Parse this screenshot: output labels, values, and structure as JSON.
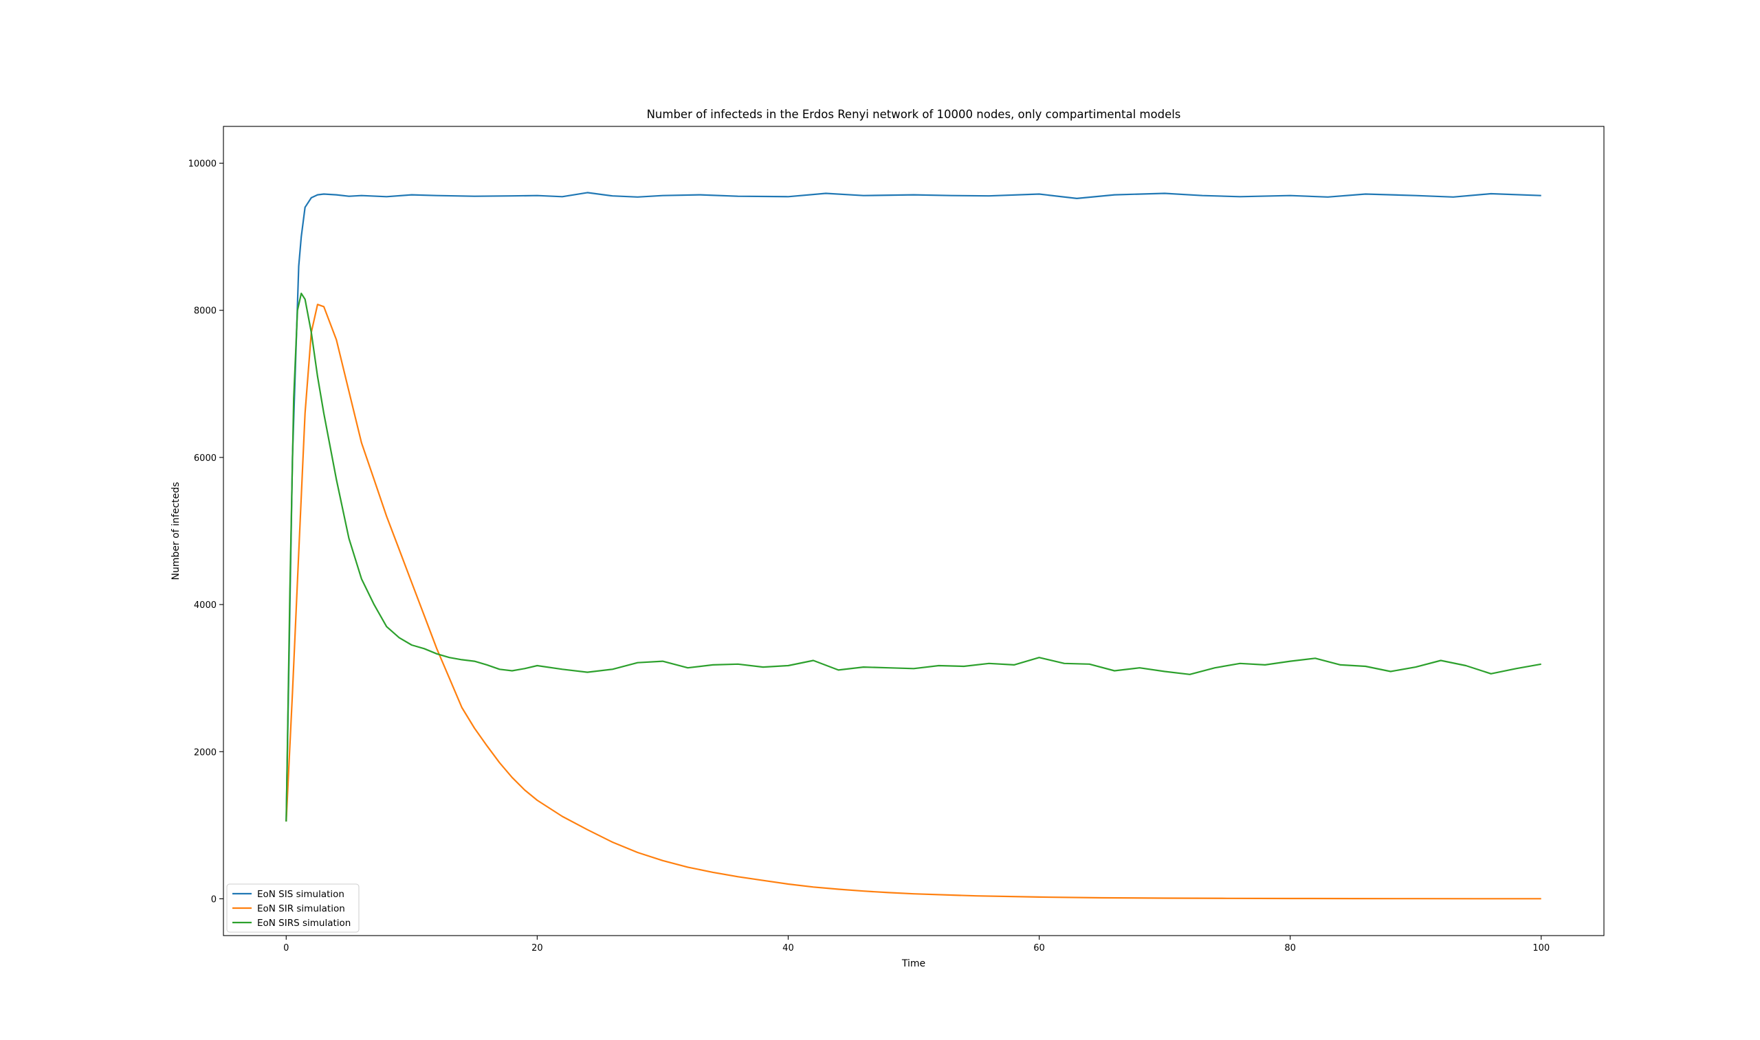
{
  "chart_data": {
    "type": "line",
    "title": "Number of infecteds in the Erdos Renyi network of 10000 nodes, only compartimental models",
    "xlabel": "Time",
    "ylabel": "Number of infecteds",
    "xlim": [
      -5,
      105
    ],
    "ylim": [
      -500,
      10500
    ],
    "xticks": [
      0,
      20,
      40,
      60,
      80,
      100
    ],
    "yticks": [
      0,
      2000,
      4000,
      6000,
      8000,
      10000
    ],
    "grid": false,
    "legend_position": "lower-left",
    "series": [
      {
        "name": "EoN SIS simulation",
        "color": "#1f77b4",
        "x": [
          0,
          0.5,
          1,
          1.2,
          1.5,
          2,
          2.5,
          3,
          4,
          5,
          6,
          8,
          10,
          12,
          15,
          18,
          20,
          22,
          24,
          26,
          28,
          30,
          33,
          36,
          40,
          43,
          46,
          50,
          53,
          56,
          60,
          63,
          66,
          70,
          73,
          76,
          80,
          83,
          86,
          90,
          93,
          96,
          100
        ],
        "y": [
          1050,
          6000,
          8600,
          9000,
          9400,
          9530,
          9570,
          9580,
          9570,
          9550,
          9560,
          9545,
          9570,
          9560,
          9550,
          9555,
          9560,
          9545,
          9600,
          9555,
          9540,
          9560,
          9570,
          9550,
          9545,
          9590,
          9560,
          9570,
          9560,
          9555,
          9580,
          9520,
          9570,
          9590,
          9560,
          9545,
          9560,
          9540,
          9580,
          9560,
          9540,
          9585,
          9560
        ]
      },
      {
        "name": "EoN SIR simulation",
        "color": "#ff7f0e",
        "x": [
          0,
          0.5,
          1,
          1.5,
          2,
          2.5,
          3,
          4,
          5,
          6,
          7,
          8,
          9,
          10,
          11,
          12,
          13,
          14,
          15,
          16,
          17,
          18,
          19,
          20,
          22,
          24,
          26,
          28,
          30,
          32,
          34,
          36,
          38,
          40,
          42,
          44,
          46,
          48,
          50,
          55,
          60,
          65,
          70,
          75,
          80,
          85,
          90,
          95,
          100
        ],
        "y": [
          1050,
          2800,
          4700,
          6600,
          7700,
          8080,
          8050,
          7600,
          6900,
          6200,
          5700,
          5200,
          4750,
          4300,
          3850,
          3400,
          3000,
          2600,
          2320,
          2080,
          1850,
          1650,
          1480,
          1340,
          1120,
          940,
          770,
          630,
          520,
          430,
          360,
          300,
          250,
          200,
          160,
          130,
          105,
          85,
          68,
          40,
          24,
          14,
          9,
          6,
          4,
          3,
          2,
          1,
          1
        ]
      },
      {
        "name": "EoN SIRS simulation",
        "color": "#2ca02c",
        "x": [
          0,
          0.3,
          0.6,
          0.9,
          1.2,
          1.5,
          2,
          2.5,
          3,
          4,
          5,
          6,
          7,
          8,
          9,
          10,
          11,
          12,
          13,
          14,
          15,
          16,
          17,
          18,
          19,
          20,
          22,
          24,
          26,
          28,
          30,
          32,
          34,
          36,
          38,
          40,
          42,
          44,
          46,
          48,
          50,
          52,
          54,
          56,
          58,
          60,
          62,
          64,
          66,
          68,
          70,
          72,
          74,
          76,
          78,
          80,
          82,
          84,
          86,
          88,
          90,
          92,
          94,
          96,
          98,
          100
        ],
        "y": [
          1050,
          4200,
          6800,
          8000,
          8230,
          8150,
          7700,
          7100,
          6600,
          5700,
          4900,
          4350,
          4000,
          3700,
          3550,
          3450,
          3400,
          3330,
          3280,
          3250,
          3230,
          3180,
          3120,
          3100,
          3130,
          3170,
          3120,
          3080,
          3120,
          3210,
          3230,
          3140,
          3180,
          3190,
          3150,
          3170,
          3240,
          3110,
          3150,
          3140,
          3130,
          3170,
          3160,
          3200,
          3180,
          3280,
          3200,
          3190,
          3100,
          3140,
          3090,
          3050,
          3140,
          3200,
          3180,
          3230,
          3270,
          3180,
          3160,
          3090,
          3150,
          3240,
          3170,
          3060,
          3130,
          3190
        ]
      }
    ]
  }
}
